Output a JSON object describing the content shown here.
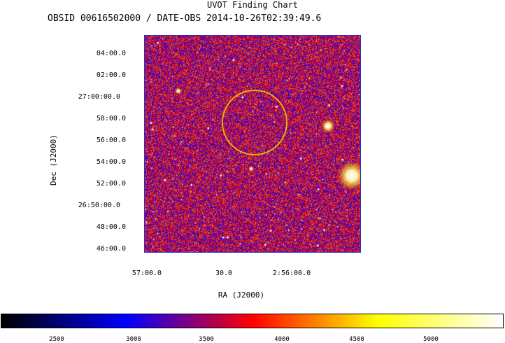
{
  "header": {
    "title": "UVOT Finding Chart",
    "subtitle": "OBSID 00616502000 / DATE-OBS 2014-10-26T02:39:49.6"
  },
  "chart_data": {
    "type": "heatmap",
    "title": "UVOT Finding Chart",
    "subtitle": "OBSID 00616502000 / DATE-OBS 2014-10-26T02:39:49.6",
    "xlabel": "RA (J2000)",
    "ylabel": "Dec (J2000)",
    "x_ticks": [
      "57:00.0",
      "30.0",
      "2:56:00.0"
    ],
    "y_ticks": [
      "04:00.0",
      "02:00.0",
      "27:00:00.0",
      "58:00.0",
      "56:00.0",
      "54:00.0",
      "52:00.0",
      "26:50:00.0",
      "48:00.0",
      "46:00.0"
    ],
    "colorbar": {
      "ticks": [
        "2500",
        "3000",
        "3500",
        "4000",
        "4500",
        "5000"
      ],
      "tick_values": [
        2500,
        3000,
        3500,
        4000,
        4500,
        5000
      ],
      "range": [
        2180,
        5450
      ],
      "colors": [
        "#000000",
        "#0000ff",
        "#ff0000",
        "#ffff00",
        "#ffffff"
      ]
    },
    "circle_color": "#e8b000"
  }
}
